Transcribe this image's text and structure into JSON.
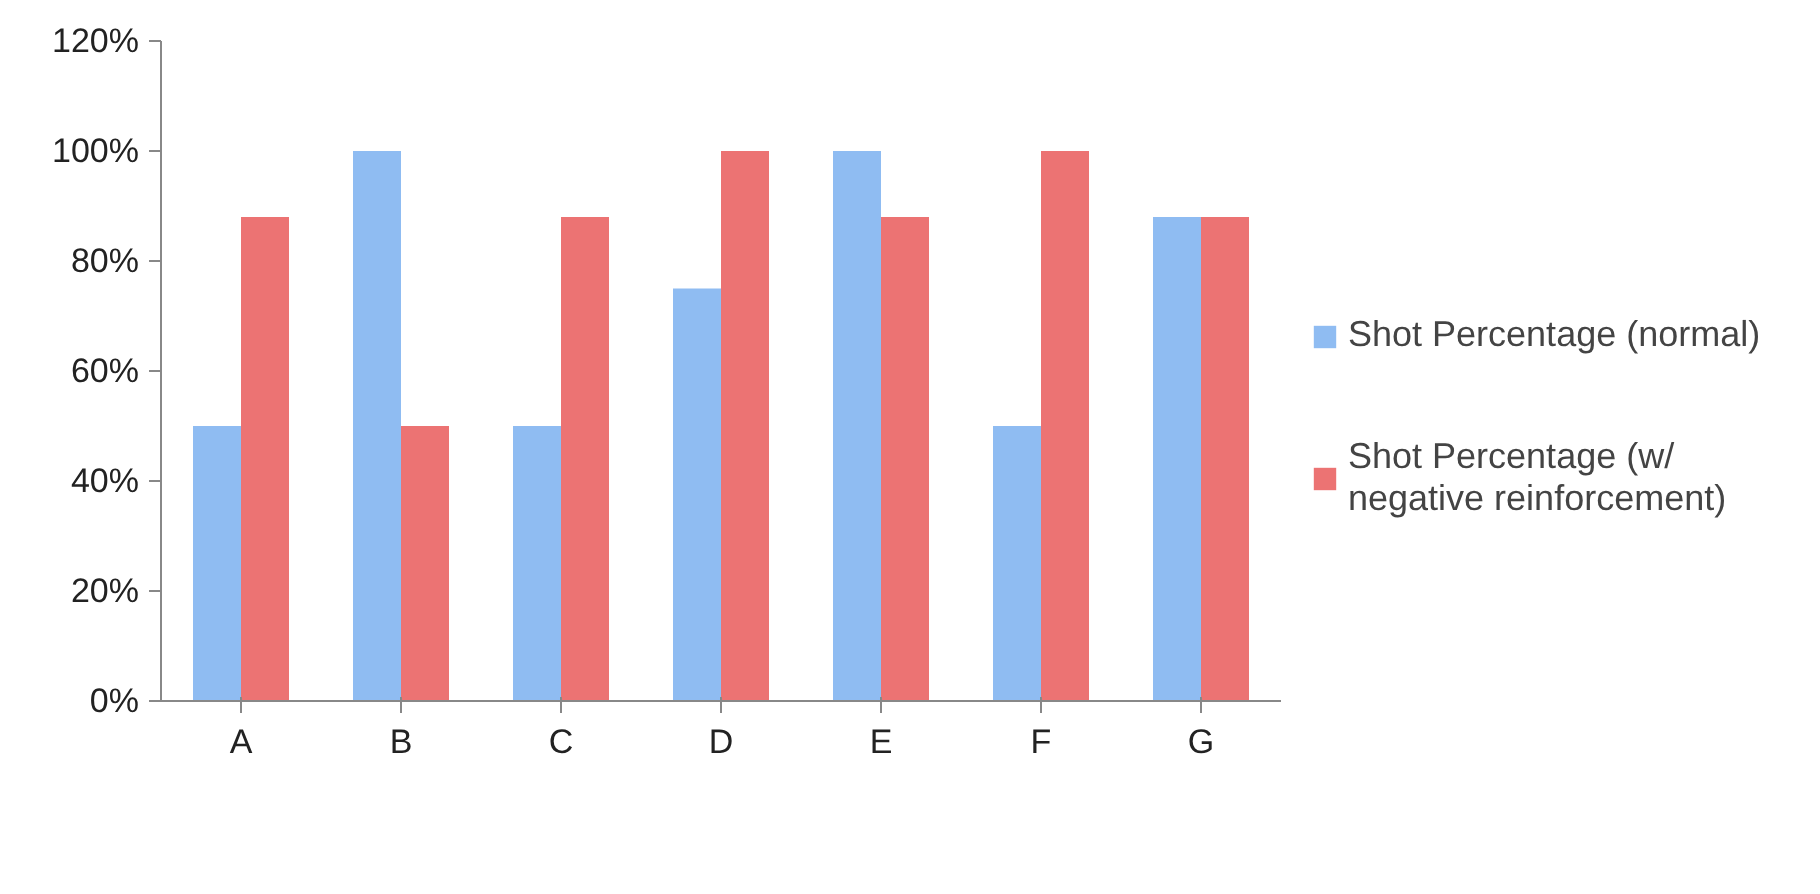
{
  "chart_data": {
    "type": "bar",
    "categories": [
      "A",
      "B",
      "C",
      "D",
      "E",
      "F",
      "G"
    ],
    "series": [
      {
        "name": "Shot Percentage (normal)",
        "color": "#8fbcf2",
        "values": [
          50,
          100,
          50,
          75,
          100,
          50,
          88
        ]
      },
      {
        "name": "Shot Percentage (w/ negative reinforcement)",
        "color": "#ec7373",
        "values": [
          88,
          50,
          88,
          100,
          88,
          100,
          88
        ]
      }
    ],
    "ylim": [
      0,
      120
    ],
    "yticks": [
      {
        "value": 0,
        "label": "0%"
      },
      {
        "value": 20,
        "label": "20%"
      },
      {
        "value": 40,
        "label": "40%"
      },
      {
        "value": 60,
        "label": "60%"
      },
      {
        "value": 80,
        "label": "80%"
      },
      {
        "value": 100,
        "label": "100%"
      },
      {
        "value": 120,
        "label": "120%"
      }
    ],
    "grid": false,
    "legend": "right"
  }
}
